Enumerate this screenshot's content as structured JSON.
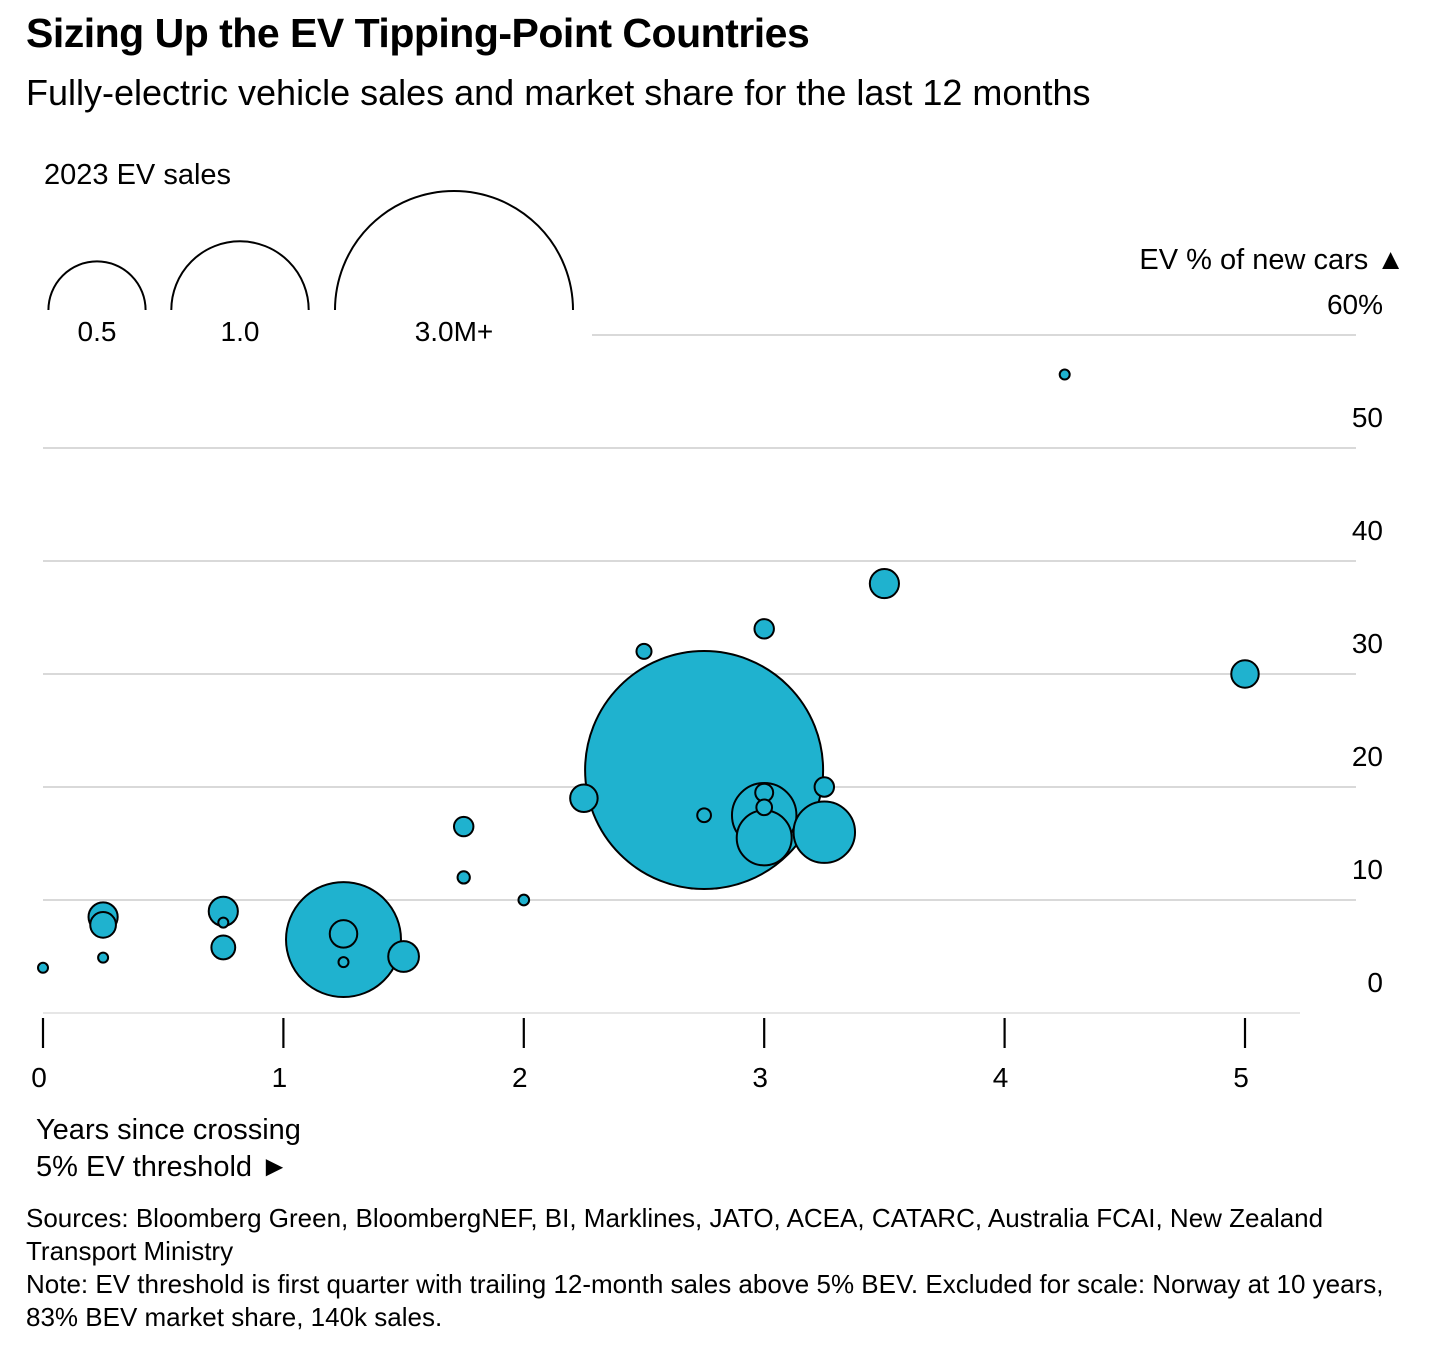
{
  "header": {
    "title": "Sizing Up the EV Tipping-Point Countries",
    "subtitle": "Fully-electric vehicle sales and market share for the last 12 months"
  },
  "size_legend": {
    "title": "2023 EV sales",
    "items": [
      {
        "label": "0.5",
        "value": 0.5
      },
      {
        "label": "1.0",
        "value": 1.0
      },
      {
        "label": "3.0M+",
        "value": 3.0
      }
    ]
  },
  "y_axis": {
    "title": "EV % of new cars ▲",
    "ticks": [
      {
        "value": 0,
        "label": "0"
      },
      {
        "value": 10,
        "label": "10"
      },
      {
        "value": 20,
        "label": "20"
      },
      {
        "value": 30,
        "label": "30"
      },
      {
        "value": 40,
        "label": "40"
      },
      {
        "value": 50,
        "label": "50"
      },
      {
        "value": 60,
        "label": "60%"
      }
    ]
  },
  "x_axis": {
    "title_line1": "Years since crossing",
    "title_line2": "5% EV threshold ►",
    "ticks": [
      {
        "value": 0,
        "label": "0"
      },
      {
        "value": 1,
        "label": "1"
      },
      {
        "value": 2,
        "label": "2"
      },
      {
        "value": 3,
        "label": "3"
      },
      {
        "value": 4,
        "label": "4"
      },
      {
        "value": 5,
        "label": "5"
      }
    ]
  },
  "footer": {
    "sources": "Sources: Bloomberg Green, BloombergNEF, BI, Marklines, JATO, ACEA, CATARC, Australia FCAI, New Zealand Transport Ministry",
    "note": "Note: EV threshold is first quarter with trailing 12-month sales above 5% BEV. Excluded for scale: Norway at 10 years, 83% BEV market share, 140k sales."
  },
  "colors": {
    "bubble_fill": "#1fb2cf",
    "bubble_stroke": "#000000",
    "gridline": "#d9d9d9"
  },
  "chart_data": {
    "type": "scatter",
    "encoding": "bubble",
    "xlabel": "Years since crossing 5% EV threshold",
    "ylabel": "EV % of new cars",
    "xlim": [
      0,
      5.25
    ],
    "ylim": [
      0,
      60
    ],
    "size_label": "2023 EV sales",
    "size_unit": "M",
    "grid": true,
    "points": [
      {
        "x": 0,
        "y": 4.0,
        "size": 0.003
      },
      {
        "x": 0.25,
        "y": 8.5,
        "size": 0.045
      },
      {
        "x": 0.25,
        "y": 7.8,
        "size": 0.035
      },
      {
        "x": 0.25,
        "y": 4.9,
        "size": 0.002
      },
      {
        "x": 0.75,
        "y": 9.0,
        "size": 0.045
      },
      {
        "x": 0.75,
        "y": 8.0,
        "size": 0.003
      },
      {
        "x": 0.75,
        "y": 5.8,
        "size": 0.03
      },
      {
        "x": 1.25,
        "y": 6.5,
        "size": 0.7
      },
      {
        "x": 1.25,
        "y": 7.0,
        "size": 0.04
      },
      {
        "x": 1.25,
        "y": 4.5,
        "size": 0.003
      },
      {
        "x": 1.5,
        "y": 5.0,
        "size": 0.05
      },
      {
        "x": 1.75,
        "y": 16.5,
        "size": 0.02
      },
      {
        "x": 1.75,
        "y": 12.0,
        "size": 0.008
      },
      {
        "x": 2.0,
        "y": 10.0,
        "size": 0.006
      },
      {
        "x": 2.25,
        "y": 19.0,
        "size": 0.04
      },
      {
        "x": 2.5,
        "y": 32.0,
        "size": 0.012
      },
      {
        "x": 2.75,
        "y": 21.5,
        "size": 3.0
      },
      {
        "x": 2.75,
        "y": 17.5,
        "size": 0.01
      },
      {
        "x": 3.0,
        "y": 34.0,
        "size": 0.02
      },
      {
        "x": 3.0,
        "y": 17.5,
        "size": 0.22
      },
      {
        "x": 3.0,
        "y": 15.5,
        "size": 0.16
      },
      {
        "x": 3.0,
        "y": 19.5,
        "size": 0.017
      },
      {
        "x": 3.0,
        "y": 18.2,
        "size": 0.013
      },
      {
        "x": 3.25,
        "y": 16.0,
        "size": 0.2
      },
      {
        "x": 3.25,
        "y": 20.0,
        "size": 0.02
      },
      {
        "x": 3.5,
        "y": 38.0,
        "size": 0.045
      },
      {
        "x": 4.25,
        "y": 56.5,
        "size": 0.002
      },
      {
        "x": 5.0,
        "y": 30.0,
        "size": 0.04
      }
    ]
  }
}
